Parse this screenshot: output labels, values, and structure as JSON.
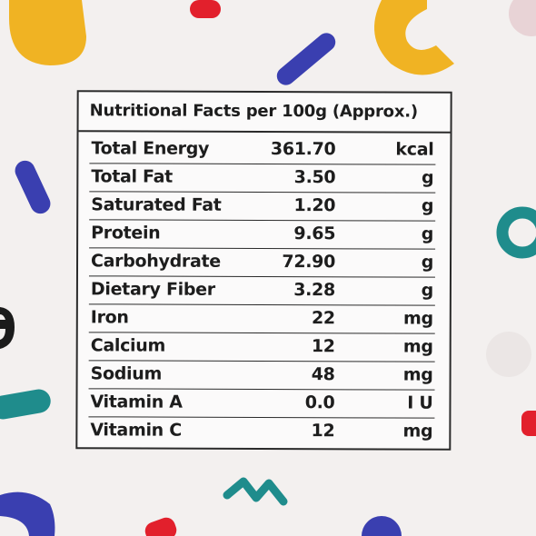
{
  "label": {
    "title": "Nutritional Facts per 100g (Approx.)",
    "rows": [
      {
        "name": "Total Energy",
        "value": "361.70",
        "unit": "kcal"
      },
      {
        "name": "Total Fat",
        "value": "3.50",
        "unit": "g"
      },
      {
        "name": "Saturated Fat",
        "value": "1.20",
        "unit": "g"
      },
      {
        "name": "Protein",
        "value": "9.65",
        "unit": "g"
      },
      {
        "name": "Carbohydrate",
        "value": "72.90",
        "unit": "g"
      },
      {
        "name": "Dietary Fiber",
        "value": "3.28",
        "unit": "g"
      },
      {
        "name": "Iron",
        "value": "22",
        "unit": "mg"
      },
      {
        "name": "Calcium",
        "value": "12",
        "unit": "mg"
      },
      {
        "name": "Sodium",
        "value": "48",
        "unit": "mg"
      },
      {
        "name": "Vitamin A",
        "value": "0.0",
        "unit": "I U"
      },
      {
        "name": "Vitamin C",
        "value": "12",
        "unit": "mg"
      }
    ]
  },
  "colors": {
    "background": "#f3f0ef",
    "yellow": "#f0b323",
    "blue": "#3a3fb0",
    "red": "#e2202c",
    "teal": "#1f8c8c",
    "pink": "#e8d3d6"
  }
}
